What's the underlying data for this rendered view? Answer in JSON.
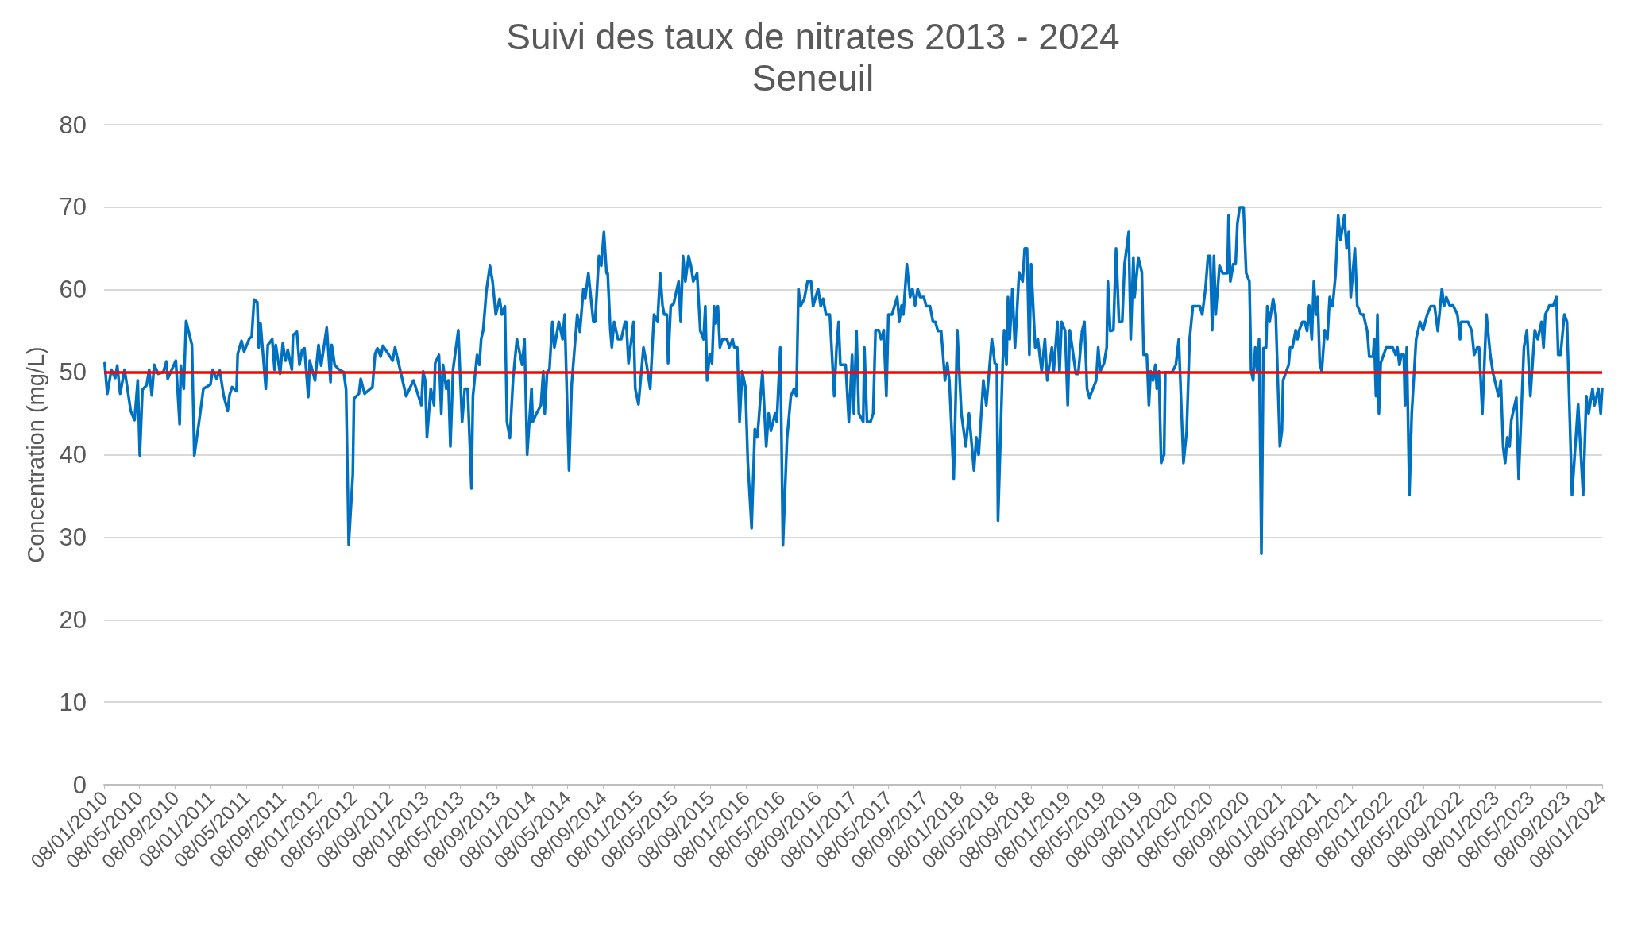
{
  "chart_data": {
    "type": "line",
    "title": "Suivi des taux de nitrates 2013 - 2024",
    "subtitle": "Seneuil",
    "ylabel": "Concentration (mg/L)",
    "xlim": [
      "2010-01-08",
      "2024-01-08"
    ],
    "xticks": [
      {
        "value": "2010-01-08",
        "label": "08/01/2010"
      },
      {
        "value": "2010-05-08",
        "label": "08/05/2010"
      },
      {
        "value": "2010-09-08",
        "label": "08/09/2010"
      },
      {
        "value": "2011-01-08",
        "label": "08/01/2011"
      },
      {
        "value": "2011-05-08",
        "label": "08/05/2011"
      },
      {
        "value": "2011-09-08",
        "label": "08/09/2011"
      },
      {
        "value": "2012-01-08",
        "label": "08/01/2012"
      },
      {
        "value": "2012-05-08",
        "label": "08/05/2012"
      },
      {
        "value": "2012-09-08",
        "label": "08/09/2012"
      },
      {
        "value": "2013-01-08",
        "label": "08/01/2013"
      },
      {
        "value": "2013-05-08",
        "label": "08/05/2013"
      },
      {
        "value": "2013-09-08",
        "label": "08/09/2013"
      },
      {
        "value": "2014-01-08",
        "label": "08/01/2014"
      },
      {
        "value": "2014-05-08",
        "label": "08/05/2014"
      },
      {
        "value": "2014-09-08",
        "label": "08/09/2014"
      },
      {
        "value": "2015-01-08",
        "label": "08/01/2015"
      },
      {
        "value": "2015-05-08",
        "label": "08/05/2015"
      },
      {
        "value": "2015-09-08",
        "label": "08/09/2015"
      },
      {
        "value": "2016-01-08",
        "label": "08/01/2016"
      },
      {
        "value": "2016-05-08",
        "label": "08/05/2016"
      },
      {
        "value": "2016-09-08",
        "label": "08/09/2016"
      },
      {
        "value": "2017-01-08",
        "label": "08/01/2017"
      },
      {
        "value": "2017-05-08",
        "label": "08/05/2017"
      },
      {
        "value": "2017-09-08",
        "label": "08/09/2017"
      },
      {
        "value": "2018-01-08",
        "label": "08/01/2018"
      },
      {
        "value": "2018-05-08",
        "label": "08/05/2018"
      },
      {
        "value": "2018-09-08",
        "label": "08/09/2018"
      },
      {
        "value": "2019-01-08",
        "label": "08/01/2019"
      },
      {
        "value": "2019-05-08",
        "label": "08/05/2019"
      },
      {
        "value": "2019-09-08",
        "label": "08/09/2019"
      },
      {
        "value": "2020-01-08",
        "label": "08/01/2020"
      },
      {
        "value": "2020-05-08",
        "label": "08/05/2020"
      },
      {
        "value": "2020-09-08",
        "label": "08/09/2020"
      },
      {
        "value": "2021-01-08",
        "label": "08/01/2021"
      },
      {
        "value": "2021-05-08",
        "label": "08/05/2021"
      },
      {
        "value": "2021-09-08",
        "label": "08/09/2021"
      },
      {
        "value": "2022-01-08",
        "label": "08/01/2022"
      },
      {
        "value": "2022-05-08",
        "label": "08/05/2022"
      },
      {
        "value": "2022-09-08",
        "label": "08/09/2022"
      },
      {
        "value": "2023-01-08",
        "label": "08/01/2023"
      },
      {
        "value": "2023-05-08",
        "label": "08/05/2023"
      },
      {
        "value": "2023-09-08",
        "label": "08/09/2023"
      },
      {
        "value": "2024-01-08",
        "label": "08/01/2024"
      }
    ],
    "ylim": [
      0,
      80
    ],
    "yticks": [
      0,
      10,
      20,
      30,
      40,
      50,
      60,
      70,
      80
    ],
    "grid": "y",
    "marker": "none",
    "line_style": "solid",
    "ref_lines": [
      {
        "axis": "y",
        "value": 50,
        "label": null,
        "color": "#ff0000"
      }
    ],
    "x": [
      "2010-01-10",
      "2010-01-19",
      "2010-02-02",
      "2010-02-15",
      "2010-02-22",
      "2010-03-04",
      "2010-03-19",
      "2010-03-28",
      "2010-04-09",
      "2010-04-22",
      "2010-05-03",
      "2010-05-10",
      "2010-05-19",
      "2010-06-02",
      "2010-06-11",
      "2010-06-20",
      "2010-06-28",
      "2010-07-12",
      "2010-07-29",
      "2010-08-09",
      "2010-08-13",
      "2010-09-10",
      "2010-09-23",
      "2010-09-27",
      "2010-10-07",
      "2010-10-15",
      "2010-11-04",
      "2010-11-12",
      "2010-11-29",
      "2010-12-13",
      "2011-01-06",
      "2011-01-14",
      "2011-01-27",
      "2011-02-07",
      "2011-02-20",
      "2011-03-06",
      "2011-03-12",
      "2011-03-21",
      "2011-04-05",
      "2011-04-09",
      "2011-04-22",
      "2011-05-01",
      "2011-05-19",
      "2011-05-27",
      "2011-06-04",
      "2011-06-15",
      "2011-06-20",
      "2011-06-26",
      "2011-07-14",
      "2011-07-21",
      "2011-08-05",
      "2011-08-13",
      "2011-08-17",
      "2011-09-01",
      "2011-09-10",
      "2011-09-19",
      "2011-09-27",
      "2011-10-11",
      "2011-10-15",
      "2011-10-28",
      "2011-11-06",
      "2011-11-15",
      "2011-11-23",
      "2011-12-06",
      "2011-12-11",
      "2011-12-29",
      "2012-01-10",
      "2012-01-19",
      "2012-02-07",
      "2012-02-20",
      "2012-02-24",
      "2012-03-05",
      "2012-03-17",
      "2012-04-05",
      "2012-04-13",
      "2012-04-22",
      "2012-05-06",
      "2012-05-10",
      "2012-05-27",
      "2012-06-02",
      "2012-06-15",
      "2012-07-12",
      "2012-07-21",
      "2012-07-29",
      "2012-08-09",
      "2012-08-17",
      "2012-09-19",
      "2012-09-27",
      "2012-11-04",
      "2012-11-29",
      "2012-12-26",
      "2013-01-01",
      "2013-01-08",
      "2013-01-14",
      "2013-01-27",
      "2013-02-07",
      "2013-02-11",
      "2013-02-24",
      "2013-03-04",
      "2013-03-10",
      "2013-03-21",
      "2013-03-28",
      "2013-04-04",
      "2013-04-13",
      "2013-05-01",
      "2013-05-14",
      "2013-05-23",
      "2013-06-02",
      "2013-06-15",
      "2013-06-20",
      "2013-07-04",
      "2013-07-12",
      "2013-07-18",
      "2013-07-25",
      "2013-08-05",
      "2013-08-17",
      "2013-08-26",
      "2013-09-06",
      "2013-09-19",
      "2013-09-27",
      "2013-10-07",
      "2013-10-14",
      "2013-10-24",
      "2013-11-04",
      "2013-11-17",
      "2013-12-05",
      "2013-12-13",
      "2013-12-22",
      "2014-01-06",
      "2014-01-10",
      "2014-01-23",
      "2014-02-07",
      "2014-02-15",
      "2014-02-20",
      "2014-02-28",
      "2014-03-08",
      "2014-03-18",
      "2014-03-25",
      "2014-04-09",
      "2014-04-22",
      "2014-04-29",
      "2014-05-14",
      "2014-05-23",
      "2014-06-11",
      "2014-06-20",
      "2014-07-02",
      "2014-07-08",
      "2014-07-19",
      "2014-08-05",
      "2014-08-11",
      "2014-08-24",
      "2014-09-01",
      "2014-09-10",
      "2014-09-19",
      "2014-09-23",
      "2014-10-02",
      "2014-10-07",
      "2014-10-15",
      "2014-10-28",
      "2014-11-08",
      "2014-11-21",
      "2014-11-25",
      "2014-12-03",
      "2014-12-20",
      "2014-12-26",
      "2015-01-06",
      "2015-01-23",
      "2015-02-02",
      "2015-02-15",
      "2015-02-28",
      "2015-03-12",
      "2015-03-21",
      "2015-03-29",
      "2015-04-04",
      "2015-04-13",
      "2015-04-17",
      "2015-04-26",
      "2015-05-06",
      "2015-05-23",
      "2015-05-30",
      "2015-06-07",
      "2015-06-15",
      "2015-06-26",
      "2015-07-04",
      "2015-07-12",
      "2015-07-25",
      "2015-08-05",
      "2015-08-16",
      "2015-08-22",
      "2015-08-28",
      "2015-09-06",
      "2015-09-14",
      "2015-09-21",
      "2015-09-27",
      "2015-10-04",
      "2015-10-11",
      "2015-10-20",
      "2015-11-04",
      "2015-11-12",
      "2015-11-23",
      "2015-11-29",
      "2015-12-09",
      "2015-12-17",
      "2015-12-26",
      "2016-01-06",
      "2016-01-14",
      "2016-01-27",
      "2016-02-07",
      "2016-02-15",
      "2016-02-20",
      "2016-03-04",
      "2016-03-17",
      "2016-03-25",
      "2016-04-02",
      "2016-04-16",
      "2016-04-22",
      "2016-05-04",
      "2016-05-13",
      "2016-05-27",
      "2016-06-09",
      "2016-06-20",
      "2016-06-28",
      "2016-07-05",
      "2016-07-12",
      "2016-07-25",
      "2016-08-05",
      "2016-08-17",
      "2016-08-24",
      "2016-09-10",
      "2016-09-19",
      "2016-09-27",
      "2016-10-07",
      "2016-10-20",
      "2016-11-04",
      "2016-11-12",
      "2016-11-19",
      "2016-11-25",
      "2016-12-13",
      "2016-12-24",
      "2017-01-04",
      "2017-01-10",
      "2017-01-19",
      "2017-01-27",
      "2017-02-11",
      "2017-02-15",
      "2017-02-24",
      "2017-03-08",
      "2017-03-17",
      "2017-03-25",
      "2017-04-05",
      "2017-04-13",
      "2017-04-22",
      "2017-05-01",
      "2017-05-08",
      "2017-05-20",
      "2017-06-07",
      "2017-06-14",
      "2017-06-22",
      "2017-06-28",
      "2017-07-10",
      "2017-07-21",
      "2017-07-29",
      "2017-08-07",
      "2017-08-16",
      "2017-08-24",
      "2017-09-06",
      "2017-09-14",
      "2017-09-27",
      "2017-10-07",
      "2017-10-15",
      "2017-10-24",
      "2017-11-04",
      "2017-11-17",
      "2017-11-25",
      "2017-12-02",
      "2017-12-17",
      "2017-12-29",
      "2018-01-12",
      "2018-01-27",
      "2018-02-07",
      "2018-02-24",
      "2018-03-04",
      "2018-03-12",
      "2018-03-28",
      "2018-04-07",
      "2018-04-26",
      "2018-05-06",
      "2018-05-13",
      "2018-05-17",
      "2018-06-02",
      "2018-06-07",
      "2018-06-15",
      "2018-06-20",
      "2018-06-26",
      "2018-07-05",
      "2018-07-14",
      "2018-07-28",
      "2018-08-09",
      "2018-08-16",
      "2018-08-24",
      "2018-09-01",
      "2018-09-07",
      "2018-09-21",
      "2018-09-30",
      "2018-10-13",
      "2018-10-24",
      "2018-11-01",
      "2018-11-17",
      "2018-11-23",
      "2018-12-06",
      "2018-12-13",
      "2018-12-20",
      "2019-01-01",
      "2019-01-10",
      "2019-01-17",
      "2019-02-07",
      "2019-02-15",
      "2019-02-28",
      "2019-03-08",
      "2019-03-17",
      "2019-03-25",
      "2019-04-05",
      "2019-04-17",
      "2019-04-24",
      "2019-05-01",
      "2019-05-14",
      "2019-05-23",
      "2019-05-27",
      "2019-06-04",
      "2019-06-15",
      "2019-06-24",
      "2019-07-04",
      "2019-07-15",
      "2019-07-23",
      "2019-08-06",
      "2019-08-13",
      "2019-08-22",
      "2019-08-26",
      "2019-09-08",
      "2019-09-20",
      "2019-09-26",
      "2019-10-07",
      "2019-10-14",
      "2019-10-20",
      "2019-10-28",
      "2019-11-05",
      "2019-11-10",
      "2019-11-17",
      "2019-11-25",
      "2019-12-05",
      "2019-12-09",
      "2020-01-01",
      "2020-01-14",
      "2020-01-24",
      "2020-02-09",
      "2020-02-20",
      "2020-03-01",
      "2020-03-12",
      "2020-04-05",
      "2020-04-13",
      "2020-04-24",
      "2020-05-03",
      "2020-05-10",
      "2020-05-17",
      "2020-05-23",
      "2020-05-29",
      "2020-06-11",
      "2020-06-22",
      "2020-07-08",
      "2020-07-12",
      "2020-07-18",
      "2020-07-28",
      "2020-08-05",
      "2020-08-11",
      "2020-08-19",
      "2020-09-01",
      "2020-09-10",
      "2020-09-21",
      "2020-09-27",
      "2020-10-04",
      "2020-10-11",
      "2020-10-18",
      "2020-10-24",
      "2020-11-01",
      "2020-11-08",
      "2020-11-17",
      "2020-11-21",
      "2020-11-29",
      "2020-12-11",
      "2020-12-20",
      "2021-01-03",
      "2021-01-10",
      "2021-01-14",
      "2021-02-02",
      "2021-02-07",
      "2021-02-15",
      "2021-02-26",
      "2021-03-04",
      "2021-03-10",
      "2021-03-21",
      "2021-03-29",
      "2021-04-06",
      "2021-04-13",
      "2021-04-22",
      "2021-04-29",
      "2021-05-06",
      "2021-05-12",
      "2021-05-19",
      "2021-05-26",
      "2021-06-05",
      "2021-06-14",
      "2021-06-22",
      "2021-07-02",
      "2021-07-12",
      "2021-07-21",
      "2021-07-29",
      "2021-08-11",
      "2021-08-19",
      "2021-08-26",
      "2021-09-02",
      "2021-09-16",
      "2021-09-24",
      "2021-10-07",
      "2021-10-15",
      "2021-10-28",
      "2021-11-04",
      "2021-11-17",
      "2021-11-21",
      "2021-11-27",
      "2021-12-02",
      "2021-12-07",
      "2021-12-13",
      "2022-01-01",
      "2022-01-23",
      "2022-02-02",
      "2022-02-08",
      "2022-02-15",
      "2022-02-22",
      "2022-03-02",
      "2022-03-06",
      "2022-03-12",
      "2022-03-21",
      "2022-03-29",
      "2022-04-13",
      "2022-04-26",
      "2022-05-07",
      "2022-05-21",
      "2022-06-02",
      "2022-06-15",
      "2022-06-26",
      "2022-07-10",
      "2022-07-17",
      "2022-07-25",
      "2022-08-05",
      "2022-08-17",
      "2022-09-01",
      "2022-09-10",
      "2022-09-14",
      "2022-10-07",
      "2022-10-20",
      "2022-10-28",
      "2022-11-08",
      "2022-11-14",
      "2022-11-25",
      "2022-12-09",
      "2022-12-22",
      "2023-01-01",
      "2023-01-19",
      "2023-01-27",
      "2023-02-04",
      "2023-02-11",
      "2023-02-18",
      "2023-02-26",
      "2023-03-04",
      "2023-03-21",
      "2023-03-29",
      "2023-04-16",
      "2023-04-26",
      "2023-05-08",
      "2023-05-23",
      "2023-06-02",
      "2023-06-15",
      "2023-06-22",
      "2023-06-28",
      "2023-07-12",
      "2023-07-25",
      "2023-08-05",
      "2023-08-11",
      "2023-08-19",
      "2023-09-01",
      "2023-09-10",
      "2023-09-27",
      "2023-10-18",
      "2023-11-04",
      "2023-11-15",
      "2023-11-23",
      "2023-12-06",
      "2023-12-13",
      "2023-12-26",
      "2024-01-03",
      "2024-01-08"
    ],
    "series": [
      {
        "color": "#0070c0",
        "values": [
          51.1,
          47.4,
          50.3,
          49.3,
          50.8,
          47.4,
          50.3,
          48.2,
          45.3,
          44.2,
          49,
          39.9,
          47.9,
          48.4,
          50.3,
          47.2,
          50.9,
          49.8,
          50,
          51.3,
          49.2,
          51.4,
          43.7,
          50.8,
          48,
          56.2,
          53.3,
          39.9,
          44.2,
          48,
          48.5,
          50.3,
          49.2,
          50.2,
          47.2,
          45.3,
          47.2,
          48.2,
          47.7,
          52.2,
          53.8,
          52.5,
          54.1,
          54.3,
          58.8,
          58.5,
          53,
          55.9,
          48,
          53.3,
          54,
          50.3,
          53.3,
          49.8,
          53.5,
          51.4,
          52.7,
          50.3,
          54.5,
          54.9,
          50.9,
          52.7,
          52.9,
          47,
          51.4,
          49,
          53.3,
          50.8,
          55.4,
          48.8,
          53.3,
          50.9,
          50.4,
          50,
          47.9,
          29.1,
          37.6,
          46.8,
          47.4,
          49.2,
          47.4,
          48.2,
          52.2,
          52.9,
          51.9,
          53.2,
          51.4,
          53,
          47.1,
          49,
          46,
          50.1,
          49,
          42.1,
          48,
          46,
          51.1,
          52.1,
          45,
          50.9,
          48,
          49,
          41,
          50.3,
          55.1,
          44,
          48,
          48,
          35.9,
          47.1,
          52.1,
          50.9,
          54,
          55.1,
          59.9,
          62.9,
          61,
          57,
          58.9,
          57,
          58,
          44,
          42,
          49.2,
          54,
          50.9,
          54,
          40,
          48,
          44,
          45,
          46,
          50.1,
          45,
          50,
          50.3,
          56.1,
          53,
          56.1,
          54,
          57,
          38.1,
          48.5,
          57,
          54.9,
          60.1,
          58.9,
          62,
          56.1,
          56.1,
          64.1,
          62.9,
          67,
          62,
          62,
          55.1,
          53,
          56.1,
          54,
          54,
          56.1,
          56.1,
          51.1,
          56.1,
          48,
          46.1,
          53,
          51.1,
          48,
          57,
          56.1,
          62,
          58.1,
          57,
          57,
          51.1,
          58,
          58.3,
          61,
          56.1,
          64.1,
          61,
          64.1,
          62.9,
          61,
          62,
          55,
          54,
          58,
          49,
          52.2,
          51.1,
          58,
          55.9,
          58,
          53,
          54,
          54,
          53,
          54,
          53,
          53,
          44,
          50.1,
          48.2,
          39.2,
          31.1,
          43.1,
          42.1,
          44,
          50.1,
          41,
          45,
          42.9,
          45,
          44,
          53,
          29,
          42,
          47.1,
          48,
          47.1,
          60.1,
          58,
          58.9,
          61,
          61,
          58,
          60.1,
          58,
          58.9,
          57,
          57,
          47.1,
          53,
          56.1,
          50.9,
          50.9,
          44,
          52.1,
          45,
          55,
          45,
          44,
          53,
          44,
          44,
          45,
          55.1,
          55.1,
          54,
          55.1,
          47.1,
          57,
          57,
          59.1,
          56.1,
          58.1,
          57,
          63.1,
          59.1,
          60.1,
          58.1,
          60.1,
          59.1,
          59.1,
          58,
          58,
          56.1,
          56.1,
          55,
          55,
          49,
          51.1,
          49,
          37.1,
          55.1,
          45,
          41,
          45,
          38.1,
          42.1,
          40,
          49,
          46,
          54,
          51.1,
          50.9,
          32,
          51.1,
          55.1,
          50.9,
          59.1,
          54,
          60.1,
          53,
          62.1,
          61,
          65,
          65,
          52.1,
          63.1,
          53,
          54,
          50.1,
          54,
          49,
          53,
          50.1,
          56.1,
          50.1,
          56.1,
          55,
          46,
          55.1,
          49.8,
          49.8,
          55,
          56.1,
          48,
          46.9,
          47.9,
          49,
          53,
          50.1,
          51.1,
          53,
          61,
          55,
          55.1,
          65,
          56.1,
          56.1,
          63.1,
          67,
          54,
          63.9,
          59.1,
          63.9,
          62.1,
          52.1,
          52.1,
          46,
          50.1,
          49,
          50.9,
          48,
          50.1,
          39,
          40,
          50,
          50,
          50.9,
          54,
          39,
          42.9,
          54,
          58,
          58,
          57,
          60.1,
          64.1,
          64.1,
          55.1,
          64.1,
          57,
          62.9,
          62,
          62,
          69,
          61,
          63.1,
          63.1,
          68,
          70,
          70,
          62,
          61,
          50.1,
          49,
          53,
          50.1,
          54,
          28,
          52.9,
          53,
          58,
          56.1,
          58.9,
          57,
          41,
          42.9,
          49,
          50.9,
          53,
          53,
          55.1,
          54,
          55.1,
          56.1,
          56.1,
          55,
          58.1,
          54,
          61,
          57,
          59.1,
          51.1,
          50.1,
          55.1,
          54,
          59.1,
          58,
          61.8,
          69,
          66,
          69,
          65,
          67,
          59.1,
          65,
          58.1,
          57,
          57,
          55,
          51.9,
          51.9,
          54,
          47.1,
          57,
          45,
          51.1,
          53,
          53,
          52.1,
          53,
          50.9,
          52.1,
          52.1,
          46,
          53,
          35.1,
          45,
          54,
          56.1,
          55.1,
          57,
          58,
          58,
          55,
          60.1,
          58,
          59.1,
          58.1,
          58.1,
          57,
          54,
          56.1,
          56.1,
          55,
          52.1,
          53,
          53,
          45,
          57,
          52.1,
          49.8,
          47.1,
          49,
          41,
          39,
          42.1,
          41,
          44.2,
          46.9,
          37.1,
          53,
          55.1,
          47.1,
          55.1,
          54,
          56.1,
          53,
          57,
          58.1,
          58.1,
          59.1,
          52.1,
          52.1,
          57,
          56.1,
          35.1,
          46.1,
          35.1,
          47.1,
          45,
          48,
          46,
          48,
          45,
          48
        ]
      }
    ]
  }
}
